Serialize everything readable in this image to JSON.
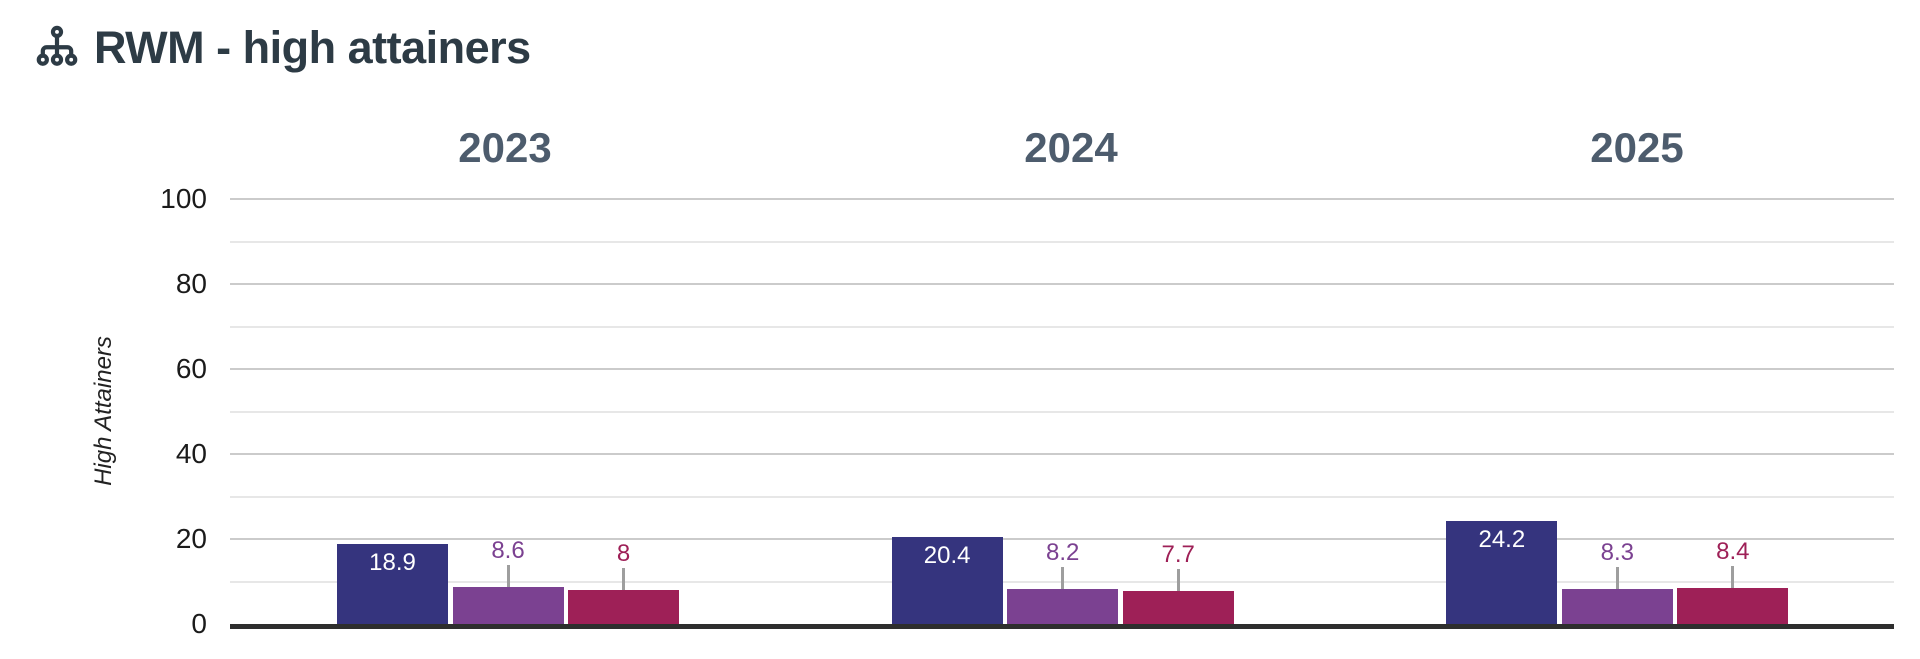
{
  "header": {
    "title": "RWM - high attainers"
  },
  "y_axis": {
    "label": "High Attainers",
    "tick_labels": [
      "0",
      "20",
      "40",
      "60",
      "80",
      "100"
    ]
  },
  "chart_data": {
    "type": "bar",
    "title": "RWM - high attainers",
    "categories": [
      "2023",
      "2024",
      "2025"
    ],
    "series": [
      {
        "name": "series-1-navy",
        "color": "#35347e",
        "value_label_position": "inside",
        "value_label_color": "#ffffff",
        "values": [
          18.9,
          20.4,
          24.2
        ]
      },
      {
        "name": "series-2-purple",
        "color": "#7b4191",
        "value_label_position": "above",
        "values": [
          8.6,
          8.2,
          8.3
        ]
      },
      {
        "name": "series-3-maroon",
        "color": "#9e2057",
        "value_label_position": "above",
        "values": [
          8,
          7.7,
          8.4
        ]
      }
    ],
    "xlabel": "",
    "ylabel": "High Attainers",
    "ylim": [
      0,
      100
    ],
    "yticks": [
      0,
      20,
      40,
      60,
      80,
      100
    ],
    "minor_gridlines": [
      10,
      30,
      50,
      70,
      90
    ],
    "grid": "on",
    "legend": "none"
  },
  "colors": {
    "title_text": "#2d3b45",
    "category_header_text": "#4d5c6d",
    "tick_text": "#1b1b1b",
    "gridline_major": "#cbcbcb",
    "gridline_minor": "#e7e7e7",
    "axis_line": "#2e2e2e",
    "callout_line": "#9e9e9e",
    "background": "#ffffff"
  }
}
